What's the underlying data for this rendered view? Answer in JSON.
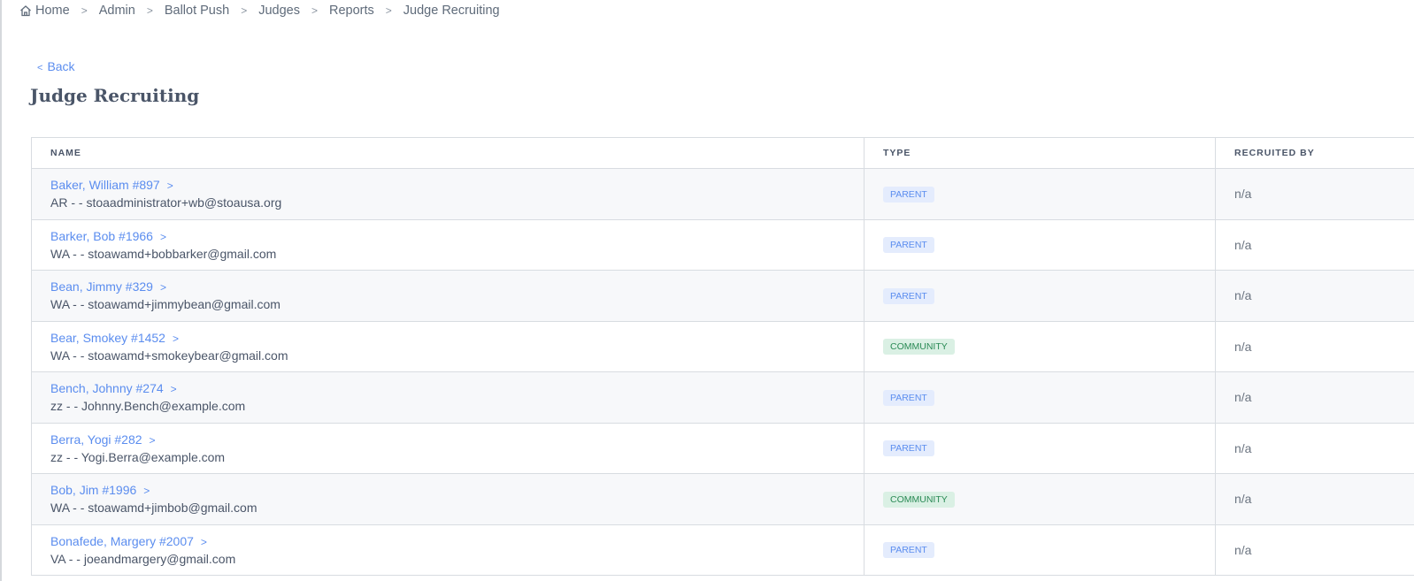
{
  "breadcrumb": [
    "Home",
    "Admin",
    "Ballot Push",
    "Judges",
    "Reports",
    "Judge Recruiting"
  ],
  "back_label": "Back",
  "page_title": "Judge Recruiting",
  "columns": [
    "NAME",
    "TYPE",
    "RECRUITED BY"
  ],
  "colors": {
    "link": "#5b8def",
    "parent_badge_bg": "#e4ecfd",
    "community_badge_bg": "#daf0e4",
    "community_text": "#2a8a55"
  },
  "rows": [
    {
      "name": "Baker, William #897",
      "detail": "AR - - stoaadministrator+wb@stoausa.org",
      "type": "PARENT",
      "recruited_by": "n/a"
    },
    {
      "name": "Barker, Bob #1966",
      "detail": "WA - - stoawamd+bobbarker@gmail.com",
      "type": "PARENT",
      "recruited_by": "n/a"
    },
    {
      "name": "Bean, Jimmy #329",
      "detail": "WA - - stoawamd+jimmybean@gmail.com",
      "type": "PARENT",
      "recruited_by": "n/a"
    },
    {
      "name": "Bear, Smokey #1452",
      "detail": "WA - - stoawamd+smokeybear@gmail.com",
      "type": "COMMUNITY",
      "recruited_by": "n/a"
    },
    {
      "name": "Bench, Johnny #274",
      "detail": "zz - - Johnny.Bench@example.com",
      "type": "PARENT",
      "recruited_by": "n/a"
    },
    {
      "name": "Berra, Yogi #282",
      "detail": "zz - - Yogi.Berra@example.com",
      "type": "PARENT",
      "recruited_by": "n/a"
    },
    {
      "name": "Bob, Jim #1996",
      "detail": "WA - - stoawamd+jimbob@gmail.com",
      "type": "COMMUNITY",
      "recruited_by": "n/a"
    },
    {
      "name": "Bonafede, Margery #2007",
      "detail": "VA - - joeandmargery@gmail.com",
      "type": "PARENT",
      "recruited_by": "n/a"
    }
  ]
}
